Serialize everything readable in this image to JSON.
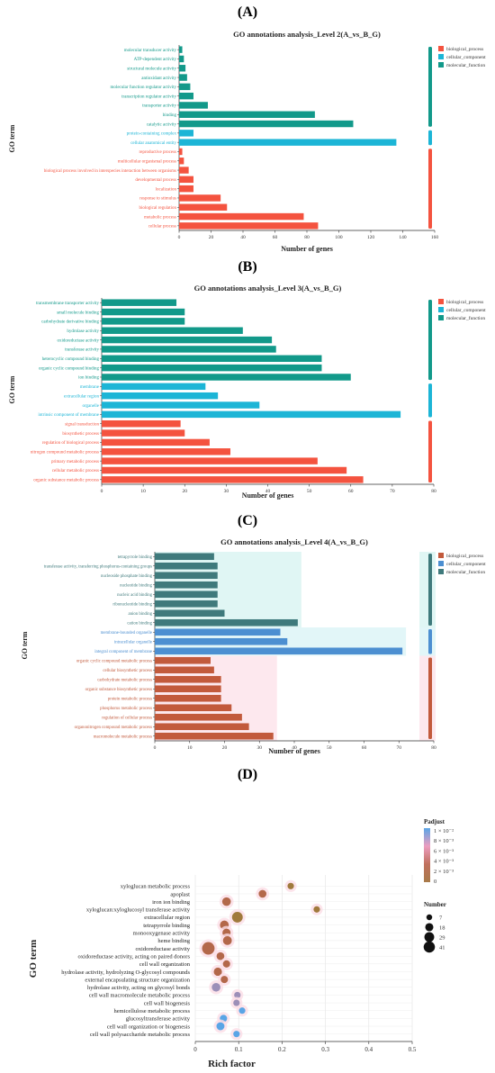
{
  "colors": {
    "biological_process": "#f4533f",
    "cellular_component": "#1cb5d6",
    "molecular_function": "#12998a",
    "axis": "#333333",
    "grid": "#e6e6e6"
  },
  "chart_data": [
    {
      "type": "bar",
      "panel_label": "(A)",
      "title": "GO annotations analysis_Level 2(A_vs_B_G)",
      "xlabel": "Number of genes",
      "ylabel": "GO term",
      "xlim": [
        0,
        160
      ],
      "xticks": [
        0,
        20,
        40,
        60,
        80,
        100,
        120,
        140,
        160
      ],
      "legend": [
        {
          "name": "biological_process",
          "color": "#f4533f"
        },
        {
          "name": "cellular_component",
          "color": "#1cb5d6"
        },
        {
          "name": "molecular_function",
          "color": "#12998a"
        }
      ],
      "bars": [
        {
          "label": "molecular transducer activity",
          "value": 2,
          "group": "molecular_function"
        },
        {
          "label": "ATP-dependent activity",
          "value": 3,
          "group": "molecular_function"
        },
        {
          "label": "structural molecule activity",
          "value": 4,
          "group": "molecular_function"
        },
        {
          "label": "antioxidant activity",
          "value": 5,
          "group": "molecular_function"
        },
        {
          "label": "molecular function regulator activity",
          "value": 7,
          "group": "molecular_function"
        },
        {
          "label": "transcription regulator activity",
          "value": 9,
          "group": "molecular_function"
        },
        {
          "label": "transporter activity",
          "value": 18,
          "group": "molecular_function"
        },
        {
          "label": "binding",
          "value": 85,
          "group": "molecular_function"
        },
        {
          "label": "catalytic activity",
          "value": 109,
          "group": "molecular_function"
        },
        {
          "label": "protein-containing complex",
          "value": 9,
          "group": "cellular_component"
        },
        {
          "label": "cellular anatomical entity",
          "value": 136,
          "group": "cellular_component"
        },
        {
          "label": "reproductive process",
          "value": 2,
          "group": "biological_process"
        },
        {
          "label": "multicellular organismal process",
          "value": 3,
          "group": "biological_process"
        },
        {
          "label": "biological process involved in interspecies interaction between organisms",
          "value": 6,
          "group": "biological_process"
        },
        {
          "label": "developmental process",
          "value": 9,
          "group": "biological_process"
        },
        {
          "label": "localization",
          "value": 9,
          "group": "biological_process"
        },
        {
          "label": "response to stimulus",
          "value": 26,
          "group": "biological_process"
        },
        {
          "label": "biological regulation",
          "value": 30,
          "group": "biological_process"
        },
        {
          "label": "metabolic process",
          "value": 78,
          "group": "biological_process"
        },
        {
          "label": "cellular process",
          "value": 87,
          "group": "biological_process"
        }
      ]
    },
    {
      "type": "bar",
      "panel_label": "(B)",
      "title": "GO annotations analysis_Level 3(A_vs_B_G)",
      "xlabel": "Number of genes",
      "ylabel": "GO term",
      "xlim": [
        0,
        80
      ],
      "xticks": [
        0,
        10,
        20,
        30,
        40,
        50,
        60,
        70,
        80
      ],
      "legend": [
        {
          "name": "biological_process",
          "color": "#f4533f"
        },
        {
          "name": "cellular_component",
          "color": "#1cb5d6"
        },
        {
          "name": "molecular_function",
          "color": "#12998a"
        }
      ],
      "bars": [
        {
          "label": "transmembrane transporter activity",
          "value": 18,
          "group": "molecular_function"
        },
        {
          "label": "small molecule binding",
          "value": 20,
          "group": "molecular_function"
        },
        {
          "label": "carbohydrate derivative binding",
          "value": 20,
          "group": "molecular_function"
        },
        {
          "label": "hydrolase activity",
          "value": 34,
          "group": "molecular_function"
        },
        {
          "label": "oxidoreductase activity",
          "value": 41,
          "group": "molecular_function"
        },
        {
          "label": "transferase activity",
          "value": 42,
          "group": "molecular_function"
        },
        {
          "label": "heterocyclic compound binding",
          "value": 53,
          "group": "molecular_function"
        },
        {
          "label": "organic cyclic compound binding",
          "value": 53,
          "group": "molecular_function"
        },
        {
          "label": "ion binding",
          "value": 60,
          "group": "molecular_function"
        },
        {
          "label": "membrane",
          "value": 25,
          "group": "cellular_component"
        },
        {
          "label": "extracellular region",
          "value": 28,
          "group": "cellular_component"
        },
        {
          "label": "organelle",
          "value": 38,
          "group": "cellular_component"
        },
        {
          "label": "intrinsic component of membrane",
          "value": 72,
          "group": "cellular_component"
        },
        {
          "label": "signal transduction",
          "value": 19,
          "group": "biological_process"
        },
        {
          "label": "biosynthetic process",
          "value": 20,
          "group": "biological_process"
        },
        {
          "label": "regulation of biological process",
          "value": 26,
          "group": "biological_process"
        },
        {
          "label": "nitrogen compound metabolic process",
          "value": 31,
          "group": "biological_process"
        },
        {
          "label": "primary metabolic process",
          "value": 52,
          "group": "biological_process"
        },
        {
          "label": "cellular metabolic process",
          "value": 59,
          "group": "biological_process"
        },
        {
          "label": "organic substance metabolic process",
          "value": 63,
          "group": "biological_process"
        }
      ]
    },
    {
      "type": "bar",
      "panel_label": "(C)",
      "title": "GO annotations analysis_Level 4(A_vs_B_G)",
      "xlabel": "Number of genes",
      "ylabel": "GO term",
      "xlim": [
        0,
        80
      ],
      "xticks": [
        0,
        10,
        20,
        30,
        40,
        50,
        60,
        70,
        80
      ],
      "legend": [
        {
          "name": "biological_process",
          "color": "#c25a3c"
        },
        {
          "name": "cellular_component",
          "color": "#4c8fd1"
        },
        {
          "name": "molecular_function",
          "color": "#3f7a7c"
        }
      ],
      "bars": [
        {
          "label": "tetrapyrrole binding",
          "value": 17,
          "group": "molecular_function"
        },
        {
          "label": "transferase activity, transferring phosphorus-containing groups",
          "value": 18,
          "group": "molecular_function"
        },
        {
          "label": "nucleoside phosphate binding",
          "value": 18,
          "group": "molecular_function"
        },
        {
          "label": "nucleotide binding",
          "value": 18,
          "group": "molecular_function"
        },
        {
          "label": "nucleic acid binding",
          "value": 18,
          "group": "molecular_function"
        },
        {
          "label": "ribonucleotide binding",
          "value": 18,
          "group": "molecular_function"
        },
        {
          "label": "anion binding",
          "value": 20,
          "group": "molecular_function"
        },
        {
          "label": "cation binding",
          "value": 41,
          "group": "molecular_function"
        },
        {
          "label": "membrane-bounded organelle",
          "value": 36,
          "group": "cellular_component"
        },
        {
          "label": "intracellular organelle",
          "value": 38,
          "group": "cellular_component"
        },
        {
          "label": "integral component of membrane",
          "value": 71,
          "group": "cellular_component"
        },
        {
          "label": "organic cyclic compound metabolic process",
          "value": 16,
          "group": "biological_process"
        },
        {
          "label": "cellular biosynthetic process",
          "value": 17,
          "group": "biological_process"
        },
        {
          "label": "carbohydrate metabolic process",
          "value": 19,
          "group": "biological_process"
        },
        {
          "label": "organic substance biosynthetic process",
          "value": 19,
          "group": "biological_process"
        },
        {
          "label": "protein metabolic process",
          "value": 19,
          "group": "biological_process"
        },
        {
          "label": "phosphorus metabolic process",
          "value": 22,
          "group": "biological_process"
        },
        {
          "label": "regulation of cellular process",
          "value": 25,
          "group": "biological_process"
        },
        {
          "label": "organonitrogen compound metabolic process",
          "value": 27,
          "group": "biological_process"
        },
        {
          "label": "macromolecule metabolic process",
          "value": 34,
          "group": "biological_process"
        }
      ]
    },
    {
      "type": "scatter",
      "panel_label": "(D)",
      "xlabel": "Rich factor",
      "ylabel": "GO term",
      "xlim": [
        0,
        0.5
      ],
      "xticks": [
        "0",
        "0.1",
        "0.2",
        "0.3",
        "0.4",
        "0.5"
      ],
      "grid": true,
      "color_legend": {
        "title": "Padjust",
        "labels": [
          "1 × 10⁻²",
          "8 × 10⁻³",
          "6 × 10⁻³",
          "4 × 10⁻³",
          "2 × 10⁻³",
          "0"
        ],
        "colors": [
          "#5aa5e6",
          "#ec9dc0",
          "#c0705e",
          "#a87a4a"
        ]
      },
      "size_legend": {
        "title": "Number",
        "values": [
          7,
          18,
          29,
          41
        ]
      },
      "points": [
        {
          "term": "xyloglucan metabolic process",
          "rich": 0.22,
          "count": 7,
          "padj": 0.002
        },
        {
          "term": "apoplast",
          "rich": 0.155,
          "count": 12,
          "padj": 0.003
        },
        {
          "term": "iron ion binding",
          "rich": 0.072,
          "count": 16,
          "padj": 0.004
        },
        {
          "term": "xyloglucan:xyloglucosyl transferase activity",
          "rich": 0.28,
          "count": 7,
          "padj": 0.002
        },
        {
          "term": "extracellular region",
          "rich": 0.097,
          "count": 28,
          "padj": 0.0005
        },
        {
          "term": "tetrapyrrole binding",
          "rich": 0.067,
          "count": 17,
          "padj": 0.004
        },
        {
          "term": "monooxygenase activity",
          "rich": 0.072,
          "count": 14,
          "padj": 0.004
        },
        {
          "term": "heme binding",
          "rich": 0.074,
          "count": 17,
          "padj": 0.004
        },
        {
          "term": "oxidoreductase activity",
          "rich": 0.03,
          "count": 41,
          "padj": 0.004
        },
        {
          "term": "oxidoreductase activity, acting on paired donors",
          "rich": 0.058,
          "count": 12,
          "padj": 0.005
        },
        {
          "term": "cell wall organization",
          "rich": 0.072,
          "count": 10,
          "padj": 0.004
        },
        {
          "term": "hydrolase activity, hydrolyzing O-glycosyl compounds",
          "rich": 0.052,
          "count": 14,
          "padj": 0.005
        },
        {
          "term": "external encapsulating structure organization",
          "rich": 0.067,
          "count": 10,
          "padj": 0.004
        },
        {
          "term": "hydrolase activity, acting on glycosyl bonds",
          "rich": 0.048,
          "count": 16,
          "padj": 0.006
        },
        {
          "term": "cell wall macromolecule metabolic process",
          "rich": 0.097,
          "count": 7,
          "padj": 0.006
        },
        {
          "term": "cell wall biogenesis",
          "rich": 0.095,
          "count": 7,
          "padj": 0.006
        },
        {
          "term": "hemicellulose metabolic process",
          "rich": 0.108,
          "count": 7,
          "padj": 0.008
        },
        {
          "term": "glucosyltransferase activity",
          "rich": 0.065,
          "count": 10,
          "padj": 0.009
        },
        {
          "term": "cell wall organization or biogenesis",
          "rich": 0.058,
          "count": 13,
          "padj": 0.009
        },
        {
          "term": "cell wall polysaccharide metabolic process",
          "rich": 0.095,
          "count": 7,
          "padj": 0.01
        }
      ]
    }
  ]
}
